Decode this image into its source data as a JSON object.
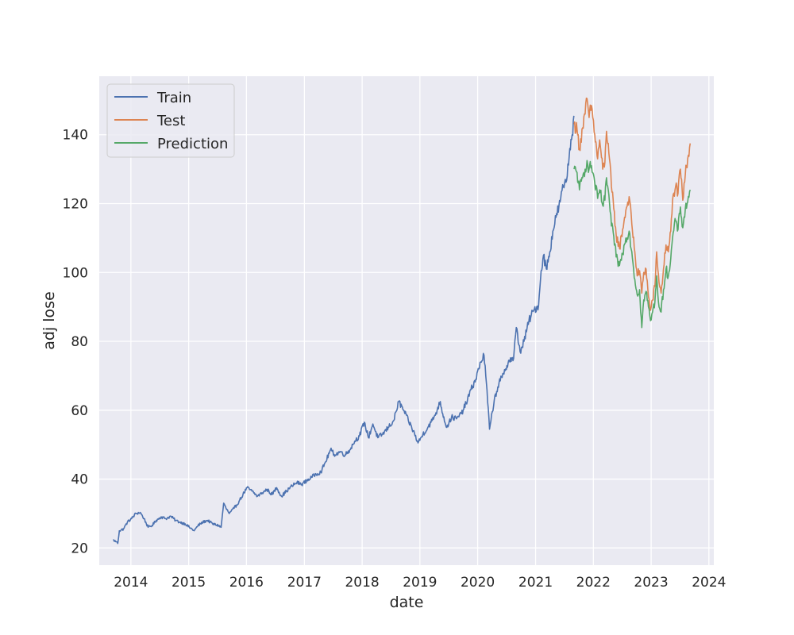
{
  "chart_data": {
    "type": "line",
    "title": "",
    "xlabel": "date",
    "ylabel": "adj lose",
    "xlim": [
      "2013-06-15",
      "2024-02-01"
    ],
    "ylim": [
      15,
      157
    ],
    "grid": true,
    "legend_position": "top-left",
    "x_ticks": [
      "2014",
      "2015",
      "2016",
      "2017",
      "2018",
      "2019",
      "2020",
      "2021",
      "2022",
      "2023",
      "2024"
    ],
    "y_ticks": [
      20,
      40,
      60,
      80,
      100,
      120,
      140
    ],
    "series": [
      {
        "name": "Train",
        "color": "#4c72b0",
        "points": [
          [
            "2013-09-10",
            22.3
          ],
          [
            "2013-10-01",
            21.8
          ],
          [
            "2013-10-10",
            21.3
          ],
          [
            "2013-10-20",
            25.0
          ],
          [
            "2013-11-15",
            25.5
          ],
          [
            "2013-12-10",
            27.5
          ],
          [
            "2014-01-05",
            28.5
          ],
          [
            "2014-02-01",
            30.0
          ],
          [
            "2014-03-01",
            30.3
          ],
          [
            "2014-03-25",
            28.5
          ],
          [
            "2014-04-20",
            26.0
          ],
          [
            "2014-05-15",
            26.5
          ],
          [
            "2014-06-10",
            28.0
          ],
          [
            "2014-07-10",
            29.0
          ],
          [
            "2014-08-10",
            28.5
          ],
          [
            "2014-09-10",
            29.2
          ],
          [
            "2014-10-10",
            28.0
          ],
          [
            "2014-11-05",
            27.5
          ],
          [
            "2014-12-10",
            27.0
          ],
          [
            "2015-01-05",
            26.0
          ],
          [
            "2015-02-05",
            25.0
          ],
          [
            "2015-03-01",
            26.5
          ],
          [
            "2015-04-01",
            27.5
          ],
          [
            "2015-05-01",
            28.0
          ],
          [
            "2015-06-01",
            27.0
          ],
          [
            "2015-07-10",
            26.5
          ],
          [
            "2015-07-25",
            26.0
          ],
          [
            "2015-08-10",
            33.0
          ],
          [
            "2015-08-25",
            31.5
          ],
          [
            "2015-09-15",
            30.0
          ],
          [
            "2015-10-15",
            31.5
          ],
          [
            "2015-11-15",
            33.5
          ],
          [
            "2015-12-10",
            35.5
          ],
          [
            "2016-01-05",
            37.5
          ],
          [
            "2016-02-05",
            36.5
          ],
          [
            "2016-03-10",
            35.0
          ],
          [
            "2016-04-10",
            36.0
          ],
          [
            "2016-05-10",
            37.0
          ],
          [
            "2016-06-10",
            35.5
          ],
          [
            "2016-07-10",
            37.5
          ],
          [
            "2016-08-10",
            35.0
          ],
          [
            "2016-09-10",
            36.5
          ],
          [
            "2016-10-15",
            38.0
          ],
          [
            "2016-11-15",
            39.0
          ],
          [
            "2016-12-15",
            38.5
          ],
          [
            "2017-01-15",
            39.5
          ],
          [
            "2017-02-15",
            40.5
          ],
          [
            "2017-03-15",
            41.5
          ],
          [
            "2017-04-15",
            42.0
          ],
          [
            "2017-05-15",
            45.0
          ],
          [
            "2017-06-15",
            48.5
          ],
          [
            "2017-07-15",
            47.0
          ],
          [
            "2017-08-15",
            48.0
          ],
          [
            "2017-09-15",
            47.0
          ],
          [
            "2017-10-15",
            48.5
          ],
          [
            "2017-11-15",
            51.0
          ],
          [
            "2017-12-15",
            52.5
          ],
          [
            "2018-01-15",
            56.5
          ],
          [
            "2018-02-10",
            52.0
          ],
          [
            "2018-03-10",
            56.0
          ],
          [
            "2018-04-10",
            52.0
          ],
          [
            "2018-05-10",
            53.0
          ],
          [
            "2018-06-15",
            55.0
          ],
          [
            "2018-07-20",
            57.0
          ],
          [
            "2018-08-20",
            62.5
          ],
          [
            "2018-09-20",
            60.0
          ],
          [
            "2018-10-20",
            57.0
          ],
          [
            "2018-11-20",
            54.0
          ],
          [
            "2018-12-20",
            50.5
          ],
          [
            "2019-01-20",
            53.0
          ],
          [
            "2019-02-20",
            55.0
          ],
          [
            "2019-03-20",
            57.0
          ],
          [
            "2019-04-20",
            60.0
          ],
          [
            "2019-05-10",
            62.5
          ],
          [
            "2019-05-25",
            59.0
          ],
          [
            "2019-06-20",
            55.0
          ],
          [
            "2019-07-20",
            58.0
          ],
          [
            "2019-08-20",
            57.5
          ],
          [
            "2019-09-20",
            59.0
          ],
          [
            "2019-10-20",
            62.0
          ],
          [
            "2019-11-20",
            66.0
          ],
          [
            "2019-12-20",
            69.0
          ],
          [
            "2020-01-20",
            74.0
          ],
          [
            "2020-02-10",
            76.0
          ],
          [
            "2020-02-25",
            68.0
          ],
          [
            "2020-03-16",
            54.5
          ],
          [
            "2020-03-25",
            57.0
          ],
          [
            "2020-04-15",
            63.0
          ],
          [
            "2020-05-15",
            68.0
          ],
          [
            "2020-06-15",
            70.5
          ],
          [
            "2020-07-15",
            74.5
          ],
          [
            "2020-08-15",
            75.0
          ],
          [
            "2020-09-01",
            84.0
          ],
          [
            "2020-09-25",
            77.0
          ],
          [
            "2020-10-20",
            80.0
          ],
          [
            "2020-11-20",
            86.0
          ],
          [
            "2020-12-20",
            89.0
          ],
          [
            "2021-01-20",
            90.5
          ],
          [
            "2021-02-05",
            100.5
          ],
          [
            "2021-02-20",
            105.0
          ],
          [
            "2021-03-10",
            101.0
          ],
          [
            "2021-04-01",
            106.0
          ],
          [
            "2021-04-20",
            112.0
          ],
          [
            "2021-05-10",
            116.0
          ],
          [
            "2021-06-05",
            120.5
          ],
          [
            "2021-06-25",
            125.0
          ],
          [
            "2021-07-20",
            128.0
          ],
          [
            "2021-08-05",
            136.0
          ],
          [
            "2021-08-20",
            140.0
          ],
          [
            "2021-08-31",
            145.5
          ]
        ]
      },
      {
        "name": "Test",
        "color": "#dd8452",
        "points": [
          [
            "2021-09-01",
            143.0
          ],
          [
            "2021-09-20",
            141.5
          ],
          [
            "2021-10-05",
            136.0
          ],
          [
            "2021-10-25",
            142.0
          ],
          [
            "2021-11-10",
            146.0
          ],
          [
            "2021-11-22",
            150.5
          ],
          [
            "2021-12-05",
            145.0
          ],
          [
            "2021-12-20",
            148.5
          ],
          [
            "2022-01-10",
            140.0
          ],
          [
            "2022-01-28",
            133.0
          ],
          [
            "2022-02-10",
            138.5
          ],
          [
            "2022-03-01",
            130.0
          ],
          [
            "2022-03-15",
            132.0
          ],
          [
            "2022-03-25",
            141.0
          ],
          [
            "2022-04-05",
            137.5
          ],
          [
            "2022-04-25",
            125.0
          ],
          [
            "2022-05-10",
            118.5
          ],
          [
            "2022-05-25",
            111.0
          ],
          [
            "2022-06-15",
            107.0
          ],
          [
            "2022-07-05",
            112.5
          ],
          [
            "2022-07-25",
            118.0
          ],
          [
            "2022-08-15",
            122.0
          ],
          [
            "2022-09-01",
            114.0
          ],
          [
            "2022-09-20",
            106.0
          ],
          [
            "2022-10-05",
            99.0
          ],
          [
            "2022-10-20",
            100.5
          ],
          [
            "2022-11-03",
            94.0
          ],
          [
            "2022-11-15",
            100.0
          ],
          [
            "2022-11-30",
            101.0
          ],
          [
            "2022-12-15",
            93.0
          ],
          [
            "2022-12-28",
            89.0
          ],
          [
            "2023-01-10",
            92.0
          ],
          [
            "2023-01-25",
            96.0
          ],
          [
            "2023-02-05",
            106.0
          ],
          [
            "2023-02-20",
            97.0
          ],
          [
            "2023-03-05",
            94.0
          ],
          [
            "2023-03-20",
            101.0
          ],
          [
            "2023-04-05",
            108.0
          ],
          [
            "2023-04-20",
            106.0
          ],
          [
            "2023-05-05",
            112.0
          ],
          [
            "2023-05-20",
            122.5
          ],
          [
            "2023-06-05",
            125.0
          ],
          [
            "2023-06-20",
            123.0
          ],
          [
            "2023-07-05",
            130.0
          ],
          [
            "2023-07-20",
            121.0
          ],
          [
            "2023-08-05",
            128.5
          ],
          [
            "2023-08-20",
            133.0
          ],
          [
            "2023-09-05",
            137.5
          ]
        ]
      },
      {
        "name": "Prediction",
        "color": "#55a868",
        "points": [
          [
            "2021-09-01",
            130.0
          ],
          [
            "2021-09-20",
            129.0
          ],
          [
            "2021-10-05",
            124.0
          ],
          [
            "2021-10-25",
            127.5
          ],
          [
            "2021-11-10",
            130.0
          ],
          [
            "2021-11-22",
            132.5
          ],
          [
            "2021-12-05",
            130.0
          ],
          [
            "2021-12-20",
            131.0
          ],
          [
            "2022-01-10",
            126.0
          ],
          [
            "2022-01-28",
            121.5
          ],
          [
            "2022-02-10",
            124.0
          ],
          [
            "2022-03-01",
            119.5
          ],
          [
            "2022-03-15",
            121.0
          ],
          [
            "2022-03-25",
            127.5
          ],
          [
            "2022-04-05",
            124.0
          ],
          [
            "2022-04-25",
            113.5
          ],
          [
            "2022-05-10",
            110.5
          ],
          [
            "2022-05-25",
            104.5
          ],
          [
            "2022-06-15",
            102.0
          ],
          [
            "2022-07-05",
            105.5
          ],
          [
            "2022-07-25",
            110.0
          ],
          [
            "2022-08-15",
            112.0
          ],
          [
            "2022-09-01",
            106.0
          ],
          [
            "2022-09-20",
            98.0
          ],
          [
            "2022-10-05",
            93.5
          ],
          [
            "2022-10-20",
            95.0
          ],
          [
            "2022-11-03",
            84.0
          ],
          [
            "2022-11-15",
            92.0
          ],
          [
            "2022-11-30",
            94.5
          ],
          [
            "2022-12-15",
            90.0
          ],
          [
            "2022-12-28",
            86.0
          ],
          [
            "2023-01-10",
            88.5
          ],
          [
            "2023-01-25",
            91.5
          ],
          [
            "2023-02-05",
            99.0
          ],
          [
            "2023-02-20",
            90.0
          ],
          [
            "2023-03-05",
            88.5
          ],
          [
            "2023-03-20",
            95.0
          ],
          [
            "2023-04-05",
            101.0
          ],
          [
            "2023-04-20",
            99.0
          ],
          [
            "2023-05-05",
            104.0
          ],
          [
            "2023-05-20",
            111.5
          ],
          [
            "2023-06-05",
            115.0
          ],
          [
            "2023-06-20",
            112.5
          ],
          [
            "2023-07-05",
            119.0
          ],
          [
            "2023-07-20",
            113.0
          ],
          [
            "2023-08-05",
            118.5
          ],
          [
            "2023-08-20",
            120.5
          ],
          [
            "2023-09-05",
            124.0
          ]
        ]
      }
    ]
  }
}
